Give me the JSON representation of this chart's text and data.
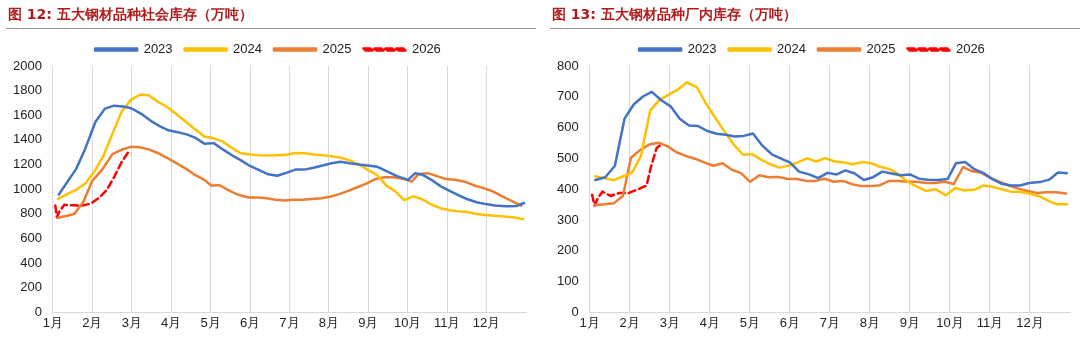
{
  "chart_data": [
    {
      "type": "line",
      "title": "图 12: 五大钢材品种社会库存（万吨）",
      "xlim": [
        1,
        13
      ],
      "xticks": [
        {
          "value": 1,
          "label": "1月"
        },
        {
          "value": 2,
          "label": "2月"
        },
        {
          "value": 3,
          "label": "3月"
        },
        {
          "value": 4,
          "label": "4月"
        },
        {
          "value": 5,
          "label": "5月"
        },
        {
          "value": 6,
          "label": "6月"
        },
        {
          "value": 7,
          "label": "7月"
        },
        {
          "value": 8,
          "label": "8月"
        },
        {
          "value": 9,
          "label": "9月"
        },
        {
          "value": 10,
          "label": "10月"
        },
        {
          "value": 11,
          "label": "11月"
        },
        {
          "value": 12,
          "label": "12月"
        }
      ],
      "ylim": [
        0,
        2000
      ],
      "yticks": [
        0,
        200,
        400,
        600,
        800,
        1000,
        1200,
        1400,
        1600,
        1800,
        2000
      ],
      "grid": "x",
      "legend": "top",
      "marker": "none",
      "series": [
        {
          "name": "2023",
          "color": "#4472c4",
          "line_style": "solid",
          "x": [
            1.15,
            1.59,
            1.82,
            2.08,
            2.32,
            2.55,
            2.78,
            2.99,
            3.24,
            3.49,
            3.73,
            3.93,
            4.16,
            4.41,
            4.62,
            4.85,
            5.08,
            5.31,
            5.57,
            5.77,
            5.98,
            6.22,
            6.46,
            6.69,
            6.92,
            7.15,
            7.38,
            7.61,
            7.84,
            8.07,
            8.3,
            8.53,
            8.76,
            8.99,
            9.22,
            9.45,
            9.73,
            10.01,
            10.19,
            10.37,
            10.6,
            10.83,
            11.06,
            11.29,
            11.52,
            11.75,
            11.98,
            12.21,
            12.49,
            12.77,
            12.95
          ],
          "values": [
            957,
            1165,
            1329,
            1547,
            1654,
            1678,
            1672,
            1657,
            1612,
            1553,
            1508,
            1478,
            1463,
            1443,
            1416,
            1368,
            1374,
            1323,
            1270,
            1234,
            1192,
            1156,
            1121,
            1109,
            1133,
            1159,
            1159,
            1174,
            1192,
            1210,
            1222,
            1210,
            1201,
            1192,
            1183,
            1148,
            1106,
            1076,
            1130,
            1118,
            1076,
            1025,
            987,
            951,
            918,
            894,
            879,
            867,
            861,
            864,
            888
          ]
        },
        {
          "name": "2024",
          "color": "#ffc000",
          "line_style": "solid",
          "x": [
            1.13,
            1.59,
            1.82,
            2.05,
            2.28,
            2.51,
            2.74,
            2.97,
            3.2,
            3.43,
            3.66,
            3.89,
            4.12,
            4.35,
            4.58,
            4.84,
            5.08,
            5.31,
            5.54,
            5.77,
            6.0,
            6.23,
            6.46,
            6.69,
            6.92,
            7.15,
            7.38,
            7.61,
            7.84,
            8.07,
            8.3,
            8.53,
            8.76,
            8.99,
            9.22,
            9.45,
            9.68,
            9.91,
            10.14,
            10.37,
            10.6,
            10.83,
            11.06,
            11.29,
            11.52,
            11.75,
            11.98,
            12.21,
            12.44,
            12.67,
            12.93
          ],
          "values": [
            921,
            996,
            1046,
            1142,
            1270,
            1449,
            1627,
            1723,
            1767,
            1762,
            1711,
            1669,
            1612,
            1553,
            1493,
            1428,
            1413,
            1386,
            1335,
            1291,
            1282,
            1276,
            1273,
            1276,
            1279,
            1294,
            1291,
            1282,
            1276,
            1267,
            1255,
            1234,
            1201,
            1157,
            1115,
            1031,
            984,
            912,
            942,
            918,
            876,
            846,
            829,
            820,
            814,
            799,
            790,
            784,
            778,
            772,
            757
          ]
        },
        {
          "name": "2025",
          "color": "#ed7d31",
          "line_style": "solid",
          "x": [
            1.13,
            1.36,
            1.54,
            1.77,
            2.0,
            2.23,
            2.51,
            2.74,
            2.97,
            3.2,
            3.43,
            3.66,
            3.89,
            4.12,
            4.35,
            4.58,
            4.84,
            5.02,
            5.22,
            5.45,
            5.68,
            5.96,
            6.19,
            6.42,
            6.65,
            6.88,
            7.11,
            7.34,
            7.57,
            7.8,
            8.03,
            8.26,
            8.49,
            8.72,
            8.95,
            9.18,
            9.41,
            9.64,
            9.91,
            10.1,
            10.28,
            10.51,
            10.74,
            10.97,
            11.2,
            11.48,
            11.71,
            11.94,
            12.17,
            12.4,
            12.63,
            12.88
          ],
          "values": [
            769,
            784,
            799,
            897,
            1070,
            1150,
            1285,
            1320,
            1344,
            1341,
            1323,
            1294,
            1255,
            1213,
            1171,
            1121,
            1076,
            1028,
            1034,
            993,
            957,
            933,
            933,
            927,
            915,
            909,
            915,
            915,
            921,
            927,
            939,
            960,
            987,
            1016,
            1046,
            1082,
            1097,
            1097,
            1082,
            1061,
            1124,
            1130,
            1106,
            1082,
            1076,
            1058,
            1028,
            1007,
            981,
            942,
            906,
            867
          ]
        },
        {
          "name": "2026",
          "color": "#ff0000",
          "line_style": "dashed",
          "x": [
            1.06,
            1.1,
            1.17,
            1.29,
            1.5,
            1.73,
            1.96,
            2.19,
            2.37,
            2.55,
            2.74,
            2.92
          ],
          "values": [
            867,
            772,
            823,
            873,
            870,
            867,
            882,
            936,
            996,
            1097,
            1219,
            1305
          ]
        }
      ]
    },
    {
      "type": "line",
      "title": "图 13: 五大钢材品种厂内库存（万吨）",
      "xlim": [
        1,
        13
      ],
      "xticks": [
        {
          "value": 1,
          "label": "1月"
        },
        {
          "value": 2,
          "label": "2月"
        },
        {
          "value": 3,
          "label": "3月"
        },
        {
          "value": 4,
          "label": "4月"
        },
        {
          "value": 5,
          "label": "5月"
        },
        {
          "value": 6,
          "label": "6月"
        },
        {
          "value": 7,
          "label": "7月"
        },
        {
          "value": 8,
          "label": "8月"
        },
        {
          "value": 9,
          "label": "9月"
        },
        {
          "value": 10,
          "label": "10月"
        },
        {
          "value": 11,
          "label": "11月"
        },
        {
          "value": 12,
          "label": "12月"
        }
      ],
      "ylim": [
        0,
        800
      ],
      "yticks": [
        0,
        100,
        200,
        300,
        400,
        500,
        600,
        700,
        800
      ],
      "grid": "x",
      "legend": "top",
      "marker": "none",
      "series": [
        {
          "name": "2023",
          "color": "#4472c4",
          "line_style": "solid",
          "x": [
            1.14,
            1.39,
            1.63,
            1.87,
            2.1,
            2.33,
            2.55,
            2.79,
            3.02,
            3.25,
            3.48,
            3.71,
            3.94,
            4.17,
            4.4,
            4.62,
            4.85,
            5.08,
            5.31,
            5.56,
            5.77,
            6.0,
            6.23,
            6.48,
            6.71,
            6.94,
            7.17,
            7.39,
            7.62,
            7.85,
            8.08,
            8.31,
            8.54,
            8.77,
            9.0,
            9.23,
            9.46,
            9.69,
            9.94,
            10.15,
            10.38,
            10.61,
            10.83,
            11.06,
            11.29,
            11.52,
            11.75,
            11.98,
            12.25,
            12.48,
            12.7,
            12.92
          ],
          "values": [
            430,
            439,
            476,
            629,
            675,
            701,
            716,
            689,
            669,
            629,
            607,
            605,
            589,
            580,
            577,
            571,
            573,
            581,
            542,
            512,
            500,
            487,
            457,
            448,
            436,
            453,
            448,
            461,
            451,
            430,
            439,
            457,
            451,
            445,
            448,
            434,
            431,
            430,
            433,
            484,
            488,
            465,
            453,
            433,
            418,
            412,
            412,
            420,
            423,
            431,
            454,
            452
          ]
        },
        {
          "name": "2024",
          "color": "#ffc000",
          "line_style": "solid",
          "x": [
            1.14,
            1.37,
            1.6,
            1.84,
            2.06,
            2.28,
            2.51,
            2.74,
            2.97,
            3.2,
            3.43,
            3.68,
            3.91,
            4.14,
            4.37,
            4.6,
            4.83,
            5.06,
            5.28,
            5.51,
            5.74,
            5.97,
            6.2,
            6.43,
            6.66,
            6.89,
            7.12,
            7.35,
            7.58,
            7.81,
            8.04,
            8.27,
            8.5,
            8.72,
            8.95,
            9.18,
            9.41,
            9.64,
            9.9,
            10.13,
            10.36,
            10.61,
            10.83,
            11.06,
            11.29,
            11.52,
            11.75,
            11.98,
            12.21,
            12.44,
            12.67,
            12.93
          ],
          "values": [
            442,
            436,
            429,
            442,
            454,
            508,
            655,
            689,
            707,
            723,
            747,
            731,
            677,
            631,
            587,
            545,
            512,
            514,
            496,
            481,
            470,
            476,
            487,
            500,
            490,
            501,
            490,
            487,
            481,
            488,
            484,
            472,
            465,
            448,
            424,
            408,
            394,
            400,
            380,
            404,
            396,
            398,
            412,
            408,
            400,
            392,
            392,
            386,
            378,
            364,
            351,
            351
          ]
        },
        {
          "name": "2025",
          "color": "#ed7d31",
          "line_style": "solid",
          "x": [
            1.14,
            1.37,
            1.6,
            1.83,
            2.03,
            2.26,
            2.49,
            2.72,
            2.95,
            3.17,
            3.4,
            3.63,
            3.86,
            4.09,
            4.32,
            4.55,
            4.78,
            5.01,
            5.24,
            5.47,
            5.7,
            5.93,
            6.18,
            6.41,
            6.64,
            6.87,
            7.1,
            7.33,
            7.56,
            7.79,
            8.02,
            8.25,
            8.48,
            8.71,
            8.94,
            9.17,
            9.4,
            9.62,
            9.87,
            10.1,
            10.33,
            10.56,
            10.79,
            11.02,
            11.25,
            11.48,
            11.71,
            11.94,
            12.17,
            12.42,
            12.65,
            12.9
          ],
          "values": [
            348,
            351,
            354,
            378,
            502,
            527,
            545,
            551,
            539,
            520,
            508,
            499,
            487,
            476,
            484,
            463,
            452,
            424,
            445,
            439,
            440,
            434,
            433,
            427,
            427,
            434,
            424,
            427,
            416,
            410,
            410,
            413,
            427,
            427,
            424,
            424,
            420,
            420,
            424,
            417,
            472,
            458,
            453,
            436,
            424,
            412,
            402,
            394,
            388,
            390,
            390,
            386
          ]
        },
        {
          "name": "2026",
          "color": "#ff0000",
          "line_style": "dashed",
          "x": [
            1.06,
            1.12,
            1.2,
            1.32,
            1.52,
            1.75,
            1.98,
            2.21,
            2.42,
            2.53,
            2.67,
            2.79
          ],
          "values": [
            382,
            347,
            370,
            392,
            378,
            388,
            388,
            400,
            412,
            472,
            533,
            547
          ]
        }
      ]
    }
  ]
}
